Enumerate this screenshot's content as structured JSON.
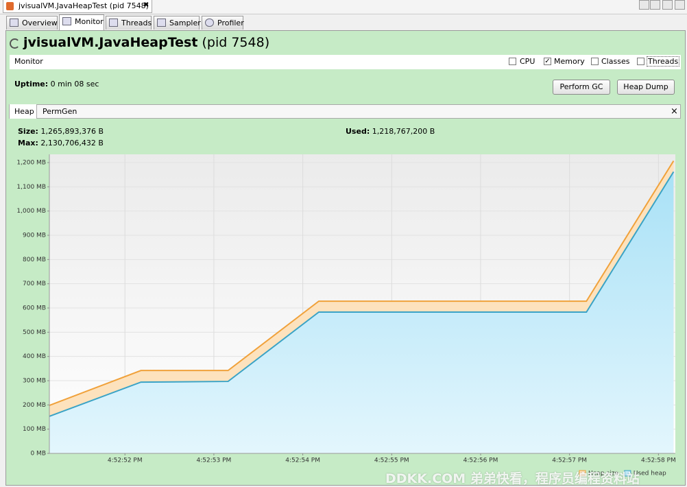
{
  "window_tab": "jvisualVM.JavaHeapTest (pid 7548)",
  "tabs": [
    {
      "label": "Overview",
      "selected": false
    },
    {
      "label": "Monitor",
      "selected": true
    },
    {
      "label": "Threads",
      "selected": false
    },
    {
      "label": "Sampler",
      "selected": false
    },
    {
      "label": "Profiler",
      "selected": false
    }
  ],
  "header": {
    "app_name": "jvisualVM.JavaHeapTest",
    "pid": "(pid 7548)"
  },
  "monitor_bar": {
    "label": "Monitor",
    "checkboxes": [
      {
        "label": "CPU",
        "checked": false
      },
      {
        "label": "Memory",
        "checked": true
      },
      {
        "label": "Classes",
        "checked": false
      },
      {
        "label": "Threads",
        "checked": false
      }
    ]
  },
  "uptime": {
    "label": "Uptime:",
    "value": "0 min 08 sec"
  },
  "buttons": [
    "Perform GC",
    "Heap Dump"
  ],
  "subtabs": [
    {
      "label": "Heap",
      "selected": true
    },
    {
      "label": "PermGen",
      "selected": false
    }
  ],
  "stats": [
    {
      "label": "Size:",
      "value": "1,265,893,376 B"
    },
    {
      "label": "Max:",
      "value": "2,130,706,432 B"
    },
    {
      "label": "Used:",
      "value": "1,218,767,200 B"
    }
  ],
  "chart_data": {
    "type": "area",
    "x": [
      51.15,
      52.18,
      53.16,
      54.18,
      57.19,
      58.17
    ],
    "series": [
      {
        "name": "Heap size",
        "color": "#f0a13a",
        "fill": "#fde2bd",
        "values": [
          198,
          342,
          342,
          628,
          628,
          1207
        ]
      },
      {
        "name": "Used heap",
        "color": "#3aa3c6",
        "fill": "#bfe9f8",
        "values": [
          153,
          294,
          297,
          583,
          583,
          1162
        ]
      }
    ],
    "xlim": [
      51.15,
      58.19
    ],
    "xticks": [
      {
        "value": 52,
        "label": "4:52:52 PM"
      },
      {
        "value": 53,
        "label": "4:52:53 PM"
      },
      {
        "value": 54,
        "label": "4:52:54 PM"
      },
      {
        "value": 55,
        "label": "4:52:55 PM"
      },
      {
        "value": 56,
        "label": "4:52:56 PM"
      },
      {
        "value": 57,
        "label": "4:52:57 PM"
      },
      {
        "value": 58,
        "label": "4:52:58 PM"
      }
    ],
    "ylim": [
      0,
      1234
    ],
    "yticks": [
      {
        "value": 0,
        "label": "0 MB"
      },
      {
        "value": 100,
        "label": "100 MB"
      },
      {
        "value": 200,
        "label": "200 MB"
      },
      {
        "value": 300,
        "label": "300 MB"
      },
      {
        "value": 400,
        "label": "400 MB"
      },
      {
        "value": 500,
        "label": "500 MB"
      },
      {
        "value": 600,
        "label": "600 MB"
      },
      {
        "value": 700,
        "label": "700 MB"
      },
      {
        "value": 800,
        "label": "800 MB"
      },
      {
        "value": 900,
        "label": "900 MB"
      },
      {
        "value": 1000,
        "label": "1,000 MB"
      },
      {
        "value": 1100,
        "label": "1,100 MB"
      },
      {
        "value": 1200,
        "label": "1,200 MB"
      }
    ],
    "grid": true,
    "legend": "lower right"
  },
  "watermark": "DDKK.COM 弟弟快看，程序员编程资料站"
}
